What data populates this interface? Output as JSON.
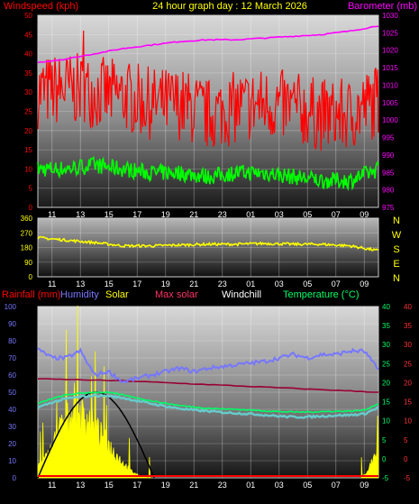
{
  "title": "24 hour graph day : 12 March 2026",
  "colors": {
    "windspeed": "#ff0000",
    "gust_avg": "#00ff00",
    "barometer": "#ff00ff",
    "wind_dir": "#ffff00",
    "rainfall": "#ff0000",
    "humidity": "#7777ff",
    "solar": "#ffff00",
    "max_solar": "#990033",
    "windchill": "#ffffff",
    "temperature": "#00ff66",
    "dewpoint": "#66cccc",
    "sun_curve": "#000000"
  },
  "chart_data": [
    {
      "type": "line",
      "name": "wind-barometer",
      "left_axis_label": "Windspeed (kph)",
      "right_axis_label": "Barometer (mb)",
      "x_ticks": [
        "11",
        "13",
        "15",
        "17",
        "19",
        "21",
        "23",
        "01",
        "03",
        "05",
        "07",
        "09"
      ],
      "left_ticks": [
        0,
        5,
        10,
        15,
        20,
        25,
        30,
        35,
        40,
        45,
        50
      ],
      "right_ticks": [
        975,
        980,
        985,
        990,
        995,
        1000,
        1005,
        1010,
        1015,
        1020,
        1025,
        1030
      ],
      "ylim_left": [
        0,
        50
      ],
      "ylim_right": [
        975,
        1030
      ],
      "series": [
        {
          "key": "wind_max",
          "hours": [
            0,
            2,
            4,
            6,
            8,
            10,
            12,
            14,
            16,
            18,
            20,
            22,
            24
          ],
          "values": [
            30,
            31,
            30,
            29,
            27,
            27,
            24,
            26,
            27,
            26,
            24,
            24,
            28
          ],
          "amplitude": 6,
          "spike": [
            3.2,
            46
          ]
        },
        {
          "key": "wind_avg",
          "hours": [
            0,
            2,
            4,
            6,
            8,
            10,
            12,
            14,
            16,
            18,
            20,
            22,
            24
          ],
          "values": [
            10,
            10,
            11,
            10,
            9,
            9,
            8,
            9,
            9,
            8,
            7,
            7,
            10
          ],
          "amplitude": 1.2
        },
        {
          "key": "barometer",
          "hours": [
            0,
            2,
            4,
            6,
            8,
            10,
            12,
            14,
            16,
            18,
            20,
            22,
            24
          ],
          "values": [
            1016.5,
            1017.5,
            1019,
            1020.5,
            1021.5,
            1022.5,
            1023,
            1023,
            1023.5,
            1024,
            1024.5,
            1025.5,
            1027
          ]
        }
      ]
    },
    {
      "type": "line",
      "name": "wind-direction",
      "left_ticks": [
        0,
        90,
        180,
        270,
        360
      ],
      "compass": [
        "N",
        "W",
        "S",
        "E",
        "N"
      ],
      "ylim": [
        0,
        360
      ],
      "x_ticks": [
        "11",
        "13",
        "15",
        "17",
        "19",
        "21",
        "23",
        "01",
        "03",
        "05",
        "07",
        "09"
      ],
      "series": [
        {
          "key": "direction",
          "hours": [
            0,
            2,
            4,
            6,
            8,
            10,
            12,
            14,
            16,
            18,
            20,
            22,
            24
          ],
          "values": [
            240,
            225,
            210,
            190,
            190,
            195,
            200,
            200,
            205,
            200,
            200,
            190,
            160
          ]
        }
      ]
    },
    {
      "type": "line",
      "name": "rain-temp-humidity",
      "legend": [
        "Rainfall (mm)",
        "Humidity",
        "Solar",
        "Max solar",
        "Windchill",
        "Temperature (°C)"
      ],
      "left_ticks": [
        0,
        10,
        20,
        30,
        40,
        50,
        60,
        70,
        80,
        90,
        100
      ],
      "right1_ticks": [
        -5,
        0,
        5,
        10,
        15,
        20,
        25,
        30,
        35,
        40
      ],
      "right2_ticks": [
        -5,
        0,
        5,
        10,
        15,
        20,
        25,
        30,
        35,
        40
      ],
      "ylim_left": [
        0,
        100
      ],
      "ylim_right": [
        -5,
        40
      ],
      "x_ticks": [
        "11",
        "13",
        "15",
        "17",
        "19",
        "21",
        "23",
        "01",
        "03",
        "05",
        "07",
        "09"
      ],
      "series": [
        {
          "key": "humidity",
          "hours": [
            0,
            1,
            2,
            3,
            4,
            5,
            6,
            7,
            8,
            9,
            10,
            11,
            12,
            13,
            14,
            15,
            16,
            17,
            18,
            19,
            20,
            21,
            22,
            23,
            24
          ],
          "values": [
            75,
            70,
            70,
            74,
            60,
            62,
            56,
            58,
            60,
            62,
            64,
            62,
            64,
            65,
            66,
            67,
            68,
            70,
            72,
            70,
            72,
            72,
            74,
            74,
            63
          ]
        },
        {
          "key": "temperature",
          "hours": [
            0,
            1,
            2,
            3,
            4,
            5,
            6,
            7,
            8,
            9,
            10,
            11,
            12,
            13,
            14,
            15,
            16,
            17,
            18,
            19,
            20,
            21,
            22,
            23,
            24
          ],
          "values": [
            14.5,
            15.8,
            16.8,
            17.2,
            17.5,
            17.4,
            16.8,
            16.0,
            15.2,
            14.6,
            14.0,
            13.6,
            13.3,
            13.1,
            13.0,
            12.8,
            12.6,
            12.4,
            12.3,
            12.3,
            12.4,
            12.5,
            12.5,
            12.8,
            14.5
          ]
        },
        {
          "key": "dewpoint",
          "hours": [
            0,
            1,
            2,
            3,
            4,
            5,
            6,
            7,
            8,
            9,
            10,
            11,
            12,
            13,
            14,
            15,
            16,
            17,
            18,
            19,
            20,
            21,
            22,
            23,
            24
          ],
          "values": [
            13.5,
            14.8,
            15.8,
            16.3,
            16.6,
            16.5,
            16.0,
            15.2,
            14.5,
            13.8,
            13.2,
            12.8,
            12.5,
            12.2,
            12.0,
            11.8,
            11.5,
            11.2,
            11.0,
            11.0,
            11.2,
            11.4,
            11.5,
            11.8,
            13.5
          ]
        },
        {
          "key": "max_solar",
          "hours": [
            0,
            6,
            12,
            18,
            24
          ],
          "values": [
            21,
            20.5,
            19.5,
            18.5,
            17.5
          ]
        },
        {
          "key": "solar_envelope",
          "hours": [
            0,
            0.5,
            1,
            1.5,
            2,
            2.5,
            3,
            3.5,
            4,
            4.5,
            5,
            5.5,
            6,
            6.5,
            7,
            7.5,
            8
          ],
          "values": [
            8,
            12,
            20,
            32,
            38,
            44,
            42,
            40,
            34,
            28,
            22,
            16,
            10,
            5,
            2,
            0.5,
            0
          ]
        },
        {
          "key": "solar_end",
          "hours": [
            22.8,
            23.2,
            23.6,
            24
          ],
          "values": [
            0,
            4,
            12,
            18
          ]
        },
        {
          "key": "sun_arc",
          "start": 0,
          "end": 8.2,
          "peak": 50
        }
      ]
    }
  ]
}
